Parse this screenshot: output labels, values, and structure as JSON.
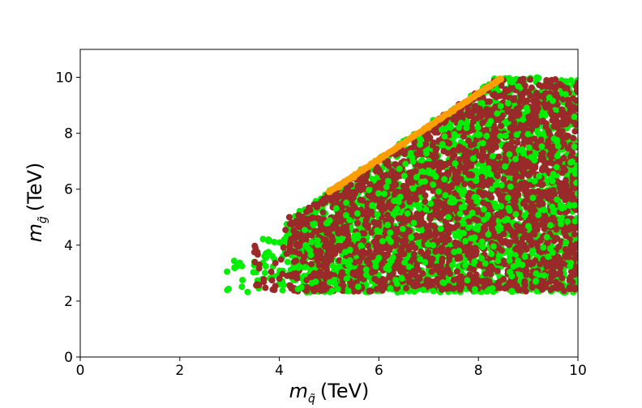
{
  "chart_data": {
    "type": "scatter",
    "title": "",
    "xlabel": "(TeV)",
    "xlabel_symbol": "m",
    "xlabel_sub": "q̃",
    "ylabel": "(TeV)",
    "ylabel_symbol": "m",
    "ylabel_sub": "g̃",
    "xlim": [
      0,
      10
    ],
    "ylim": [
      0,
      11
    ],
    "xticks": [
      0,
      2,
      4,
      6,
      8,
      10
    ],
    "yticks": [
      0,
      2,
      4,
      6,
      8,
      10
    ],
    "grid": false,
    "legend": "none",
    "series": [
      {
        "color": "#00ee00",
        "region": {
          "x_min": 2.95,
          "x_max": 10.0,
          "y_min": 2.3,
          "y_max": 10.0,
          "upper_edge_slope": 1.21,
          "upper_edge_intercept": -0.1
        },
        "sample_points": [
          [
            2.95,
            3.05
          ],
          [
            3.1,
            3.2
          ],
          [
            3.25,
            3.25
          ],
          [
            3.5,
            3.4
          ],
          [
            3.7,
            3.6
          ],
          [
            3.9,
            3.5
          ],
          [
            4.1,
            4.2
          ],
          [
            4.3,
            3.3
          ],
          [
            4.5,
            2.9
          ],
          [
            4.8,
            3.8
          ],
          [
            5.2,
            3.2
          ],
          [
            5.6,
            3.6
          ],
          [
            6.0,
            2.7
          ],
          [
            6.5,
            3.4
          ],
          [
            7.0,
            4.6
          ],
          [
            7.5,
            6.3
          ],
          [
            8.0,
            5.2
          ],
          [
            8.5,
            7.6
          ],
          [
            9.0,
            3.9
          ],
          [
            9.5,
            8.8
          ],
          [
            10.0,
            7.2
          ]
        ]
      },
      {
        "color": "#9a2a2a",
        "region": {
          "x_min": 3.5,
          "x_max": 10.0,
          "y_min": 2.35,
          "y_max": 9.95,
          "upper_edge_slope": 1.21,
          "upper_edge_intercept": -0.17
        },
        "sample_points": [
          [
            3.5,
            3.75
          ],
          [
            3.55,
            2.6
          ],
          [
            3.6,
            3.3
          ],
          [
            3.9,
            2.4
          ],
          [
            4.0,
            2.8
          ],
          [
            4.2,
            5.0
          ],
          [
            4.4,
            3.7
          ],
          [
            4.7,
            2.75
          ],
          [
            5.0,
            4.4
          ],
          [
            5.5,
            5.9
          ],
          [
            6.0,
            4.8
          ],
          [
            6.5,
            7.0
          ],
          [
            7.0,
            6.1
          ],
          [
            7.5,
            8.5
          ],
          [
            8.0,
            4.2
          ],
          [
            8.5,
            9.9
          ],
          [
            9.0,
            7.0
          ],
          [
            9.5,
            5.5
          ],
          [
            10.0,
            9.8
          ]
        ]
      },
      {
        "color": "#ff9e00",
        "line_segment": [
          [
            5.0,
            5.9
          ],
          [
            8.45,
            9.95
          ]
        ],
        "sample_points": [
          [
            5.0,
            5.9
          ],
          [
            5.2,
            6.07
          ],
          [
            5.5,
            6.42
          ],
          [
            6.0,
            7.0
          ],
          [
            6.5,
            7.6
          ],
          [
            7.0,
            8.2
          ],
          [
            7.5,
            8.8
          ],
          [
            8.0,
            9.4
          ],
          [
            8.45,
            9.95
          ]
        ]
      }
    ]
  }
}
